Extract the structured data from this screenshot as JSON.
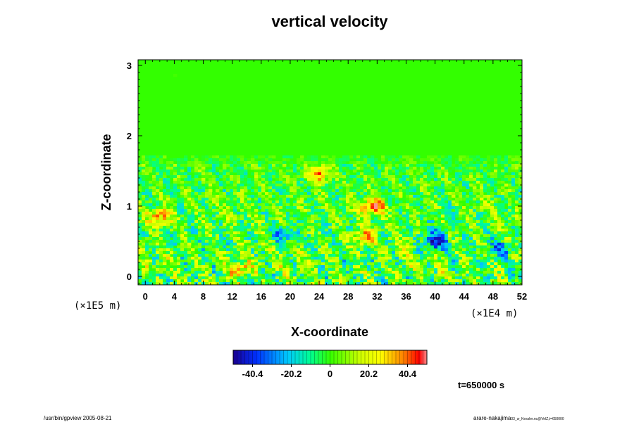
{
  "chart_data": {
    "type": "heatmap",
    "title": "vertical velocity",
    "xlabel": "X-coordinate",
    "ylabel": "Z-coordinate",
    "x_multiplier": "(×1E4 m)",
    "y_multiplier": "(×1E5 m)",
    "xlim": [
      -1,
      52
    ],
    "ylim": [
      -0.12,
      3.08
    ],
    "x_ticks": [
      0,
      4,
      8,
      12,
      16,
      20,
      24,
      28,
      32,
      36,
      40,
      44,
      48,
      52
    ],
    "y_ticks": [
      0,
      1,
      2,
      3
    ],
    "colorbar": {
      "ticks": [
        -40.4,
        -20.2,
        0,
        20.2,
        40.4
      ],
      "tick_labels": [
        "-40.4",
        "-20.2",
        "0",
        "20.2",
        "40.4"
      ],
      "range": [
        -50.5,
        50.5
      ]
    },
    "features": {
      "quiet_above_z": 1.7,
      "turbulent_below_z": 1.6,
      "strong_updrafts": [
        {
          "x": 24,
          "z": 1.45,
          "value": 40
        },
        {
          "x": 31.5,
          "z": 1.0,
          "value": 42
        },
        {
          "x": 2,
          "z": 0.85,
          "value": 38
        },
        {
          "x": 13,
          "z": 0.1,
          "value": 36
        },
        {
          "x": 30,
          "z": 0.55,
          "value": 30
        }
      ],
      "strong_downdrafts": [
        {
          "x": 40,
          "z": 0.5,
          "value": -45
        },
        {
          "x": 49,
          "z": 0.4,
          "value": -30
        },
        {
          "x": 19,
          "z": 0.6,
          "value": -28
        }
      ]
    },
    "colors": {
      "neg_max": "#1a0090",
      "neg_mid": "#00a0ff",
      "zero": "#33ff00",
      "pos_mid": "#ffff00",
      "pos_max": "#ff0000"
    }
  },
  "time_label": "t=650000 s",
  "footer": {
    "left": "/usr/bin/gpview 2005-08-21",
    "right_main": "arare-nakajima",
    "right_small": "03_w_Kessler.nc@VelZ,t=650000"
  }
}
